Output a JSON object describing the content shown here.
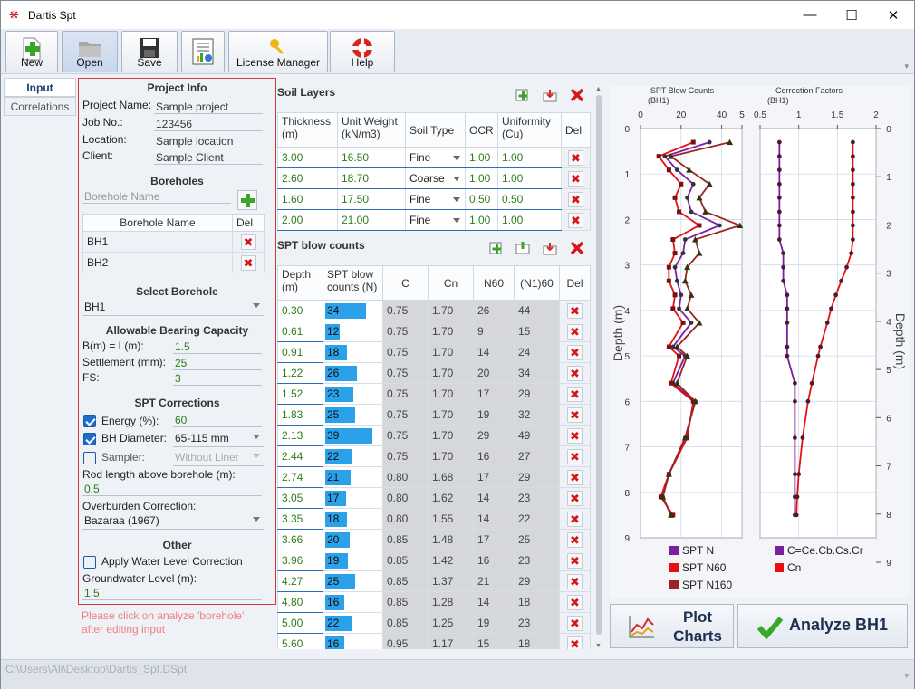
{
  "window": {
    "title": "Dartis Spt",
    "minimize": "—",
    "maximize": "☐",
    "close": "✕"
  },
  "toolbar": {
    "new": "New",
    "open": "Open",
    "save": "Save",
    "license": "License Manager",
    "help": "Help"
  },
  "sidetabs": {
    "input": "Input",
    "correlations": "Correlations"
  },
  "project": {
    "header": "Project Info",
    "name_label": "Project Name:",
    "name": "Sample project",
    "job_label": "Job No.:",
    "job": "123456",
    "location_label": "Location:",
    "location": "Sample location",
    "client_label": "Client:",
    "client": "Sample Client"
  },
  "boreholes": {
    "header": "Boreholes",
    "placeholder": "Borehole Name",
    "col_name": "Borehole Name",
    "col_del": "Del",
    "rows": [
      "BH1",
      "BH2"
    ]
  },
  "select_borehole": {
    "header": "Select Borehole",
    "value": "BH1"
  },
  "bearing": {
    "header": "Allowable Bearing Capacity",
    "b_label": "B(m) = L(m):",
    "b": "1.5",
    "settle_label": "Settlement (mm):",
    "settle": "25",
    "fs_label": "FS:",
    "fs": "3"
  },
  "spt_corr": {
    "header": "SPT Corrections",
    "energy_label": "Energy (%):",
    "energy": "60",
    "bh_label": "BH Diameter:",
    "bh": "65-115 mm",
    "sampler_label": "Sampler:",
    "sampler": "Without Liner",
    "rod_label": "Rod length above borehole (m):",
    "rod": "0.5",
    "ob_label": "Overburden Correction:",
    "ob": "Bazaraa (1967)"
  },
  "other": {
    "header": "Other",
    "water_label": "Apply Water Level Correction",
    "gw_label": "Groundwater Level (m):",
    "gw": "1.5"
  },
  "note": "Please click on analyze 'borehole' after editing input",
  "soil": {
    "title": "Soil Layers",
    "headers": [
      "Thickness (m)",
      "Unit Weight (kN/m3)",
      "Soil Type",
      "OCR",
      "Uniformity (Cu)",
      "Del"
    ],
    "rows": [
      [
        "3.00",
        "16.50",
        "Fine",
        "1.00",
        "1.00"
      ],
      [
        "2.60",
        "18.70",
        "Coarse",
        "1.00",
        "1.00"
      ],
      [
        "1.60",
        "17.50",
        "Fine",
        "0.50",
        "0.50"
      ],
      [
        "2.00",
        "21.00",
        "Fine",
        "1.00",
        "1.00"
      ]
    ]
  },
  "spt": {
    "title": "SPT blow counts",
    "headers": [
      "Depth (m)",
      "SPT blow counts (N)",
      "C",
      "Cn",
      "N60",
      "(N1)60",
      "Del"
    ],
    "rows": [
      [
        "0.30",
        "34",
        "0.75",
        "1.70",
        "26",
        "44"
      ],
      [
        "0.61",
        "12",
        "0.75",
        "1.70",
        "9",
        "15"
      ],
      [
        "0.91",
        "18",
        "0.75",
        "1.70",
        "14",
        "24"
      ],
      [
        "1.22",
        "26",
        "0.75",
        "1.70",
        "20",
        "34"
      ],
      [
        "1.52",
        "23",
        "0.75",
        "1.70",
        "17",
        "29"
      ],
      [
        "1.83",
        "25",
        "0.75",
        "1.70",
        "19",
        "32"
      ],
      [
        "2.13",
        "39",
        "0.75",
        "1.70",
        "29",
        "49"
      ],
      [
        "2.44",
        "22",
        "0.75",
        "1.70",
        "16",
        "27"
      ],
      [
        "2.74",
        "21",
        "0.80",
        "1.68",
        "17",
        "29"
      ],
      [
        "3.05",
        "17",
        "0.80",
        "1.62",
        "14",
        "23"
      ],
      [
        "3.35",
        "18",
        "0.80",
        "1.55",
        "14",
        "22"
      ],
      [
        "3.66",
        "20",
        "0.85",
        "1.48",
        "17",
        "25"
      ],
      [
        "3.96",
        "19",
        "0.85",
        "1.42",
        "16",
        "23"
      ],
      [
        "4.27",
        "25",
        "0.85",
        "1.37",
        "21",
        "29"
      ],
      [
        "4.80",
        "16",
        "0.85",
        "1.28",
        "14",
        "18"
      ],
      [
        "5.00",
        "22",
        "0.85",
        "1.25",
        "19",
        "23"
      ],
      [
        "5.60",
        "16",
        "0.95",
        "1.17",
        "15",
        "18"
      ]
    ]
  },
  "chart_data": [
    {
      "type": "line",
      "title": "SPT Blow Counts (BH1)",
      "ylabel": "Depth (m)",
      "xlim": [
        0,
        50
      ],
      "ylim": [
        9,
        0
      ],
      "xticks": [
        "0",
        "20",
        "40",
        "5"
      ],
      "yticks": [
        "0",
        "1",
        "2",
        "3",
        "4",
        "5",
        "6",
        "7",
        "8",
        "9"
      ],
      "series": [
        {
          "name": "SPT N",
          "color": "#7b1fa2",
          "points": [
            [
              34,
              0.3
            ],
            [
              12,
              0.61
            ],
            [
              18,
              0.91
            ],
            [
              26,
              1.22
            ],
            [
              23,
              1.52
            ],
            [
              25,
              1.83
            ],
            [
              39,
              2.13
            ],
            [
              22,
              2.44
            ],
            [
              21,
              2.74
            ],
            [
              17,
              3.05
            ],
            [
              18,
              3.35
            ],
            [
              20,
              3.66
            ],
            [
              19,
              3.96
            ],
            [
              25,
              4.27
            ],
            [
              16,
              4.8
            ],
            [
              22,
              5.0
            ],
            [
              16,
              5.6
            ],
            [
              27,
              6.0
            ],
            [
              22,
              6.8
            ],
            [
              14,
              7.6
            ],
            [
              11,
              8.1
            ],
            [
              15,
              8.5
            ]
          ]
        },
        {
          "name": "SPT N60",
          "color": "#e8100f",
          "points": [
            [
              26,
              0.3
            ],
            [
              9,
              0.61
            ],
            [
              14,
              0.91
            ],
            [
              20,
              1.22
            ],
            [
              17,
              1.52
            ],
            [
              19,
              1.83
            ],
            [
              29,
              2.13
            ],
            [
              16,
              2.44
            ],
            [
              17,
              2.74
            ],
            [
              14,
              3.05
            ],
            [
              14,
              3.35
            ],
            [
              17,
              3.66
            ],
            [
              16,
              3.96
            ],
            [
              21,
              4.27
            ],
            [
              14,
              4.8
            ],
            [
              19,
              5.0
            ],
            [
              15,
              5.6
            ],
            [
              26,
              6.0
            ],
            [
              23,
              6.8
            ],
            [
              14,
              7.6
            ],
            [
              10,
              8.1
            ],
            [
              16,
              8.5
            ]
          ]
        },
        {
          "name": "SPT N160",
          "color": "#9a2323",
          "points": [
            [
              44,
              0.3
            ],
            [
              15,
              0.61
            ],
            [
              24,
              0.91
            ],
            [
              34,
              1.22
            ],
            [
              29,
              1.52
            ],
            [
              32,
              1.83
            ],
            [
              49,
              2.13
            ],
            [
              27,
              2.44
            ],
            [
              29,
              2.74
            ],
            [
              23,
              3.05
            ],
            [
              22,
              3.35
            ],
            [
              25,
              3.66
            ],
            [
              23,
              3.96
            ],
            [
              29,
              4.27
            ],
            [
              18,
              4.8
            ],
            [
              23,
              5.0
            ],
            [
              18,
              5.6
            ],
            [
              27,
              6.0
            ],
            [
              22,
              6.8
            ],
            [
              14,
              7.6
            ],
            [
              11,
              8.1
            ],
            [
              15,
              8.5
            ]
          ]
        }
      ]
    },
    {
      "type": "line",
      "title": "Correction Factors (BH1)",
      "ylabel": "Depth (m)",
      "xlim": [
        0.5,
        2
      ],
      "ylim": [
        9,
        0
      ],
      "xticks": [
        "0.5",
        "1",
        "1.5",
        "2"
      ],
      "yticks": [
        "0",
        "1",
        "2",
        "3",
        "4",
        "5",
        "6",
        "7",
        "8",
        "9"
      ],
      "series": [
        {
          "name": "C=Ce.Cb.Cs.Cr",
          "color": "#7b1fa2",
          "points": [
            [
              0.75,
              0.3
            ],
            [
              0.75,
              0.61
            ],
            [
              0.75,
              0.91
            ],
            [
              0.75,
              1.22
            ],
            [
              0.75,
              1.52
            ],
            [
              0.75,
              1.83
            ],
            [
              0.75,
              2.13
            ],
            [
              0.75,
              2.44
            ],
            [
              0.8,
              2.74
            ],
            [
              0.8,
              3.05
            ],
            [
              0.8,
              3.35
            ],
            [
              0.85,
              3.66
            ],
            [
              0.85,
              3.96
            ],
            [
              0.85,
              4.27
            ],
            [
              0.85,
              4.8
            ],
            [
              0.85,
              5.0
            ],
            [
              0.95,
              5.6
            ],
            [
              0.95,
              6.0
            ],
            [
              0.95,
              6.8
            ],
            [
              0.95,
              7.6
            ],
            [
              0.95,
              8.1
            ],
            [
              0.95,
              8.5
            ]
          ]
        },
        {
          "name": "Cn",
          "color": "#e8100f",
          "points": [
            [
              1.7,
              0.3
            ],
            [
              1.7,
              0.61
            ],
            [
              1.7,
              0.91
            ],
            [
              1.7,
              1.22
            ],
            [
              1.7,
              1.52
            ],
            [
              1.7,
              1.83
            ],
            [
              1.7,
              2.13
            ],
            [
              1.7,
              2.44
            ],
            [
              1.68,
              2.74
            ],
            [
              1.62,
              3.05
            ],
            [
              1.55,
              3.35
            ],
            [
              1.48,
              3.66
            ],
            [
              1.42,
              3.96
            ],
            [
              1.37,
              4.27
            ],
            [
              1.28,
              4.8
            ],
            [
              1.25,
              5.0
            ],
            [
              1.17,
              5.6
            ],
            [
              1.12,
              6.0
            ],
            [
              1.05,
              6.8
            ],
            [
              1.0,
              7.6
            ],
            [
              0.98,
              8.1
            ],
            [
              0.97,
              8.5
            ]
          ]
        }
      ]
    }
  ],
  "chart_labels": {
    "title1a": "SPT Blow Counts",
    "title1b": "(BH1)",
    "title2a": "Correction Factors",
    "title2b": "(BH1)",
    "ylabel": "Depth (m)"
  },
  "buttons": {
    "plot_a": "Plot",
    "plot_b": "Charts",
    "analyze": "Analyze BH1"
  },
  "status": "C:\\Users\\Ali\\Desktop\\Dartis_Spt.DSpt"
}
